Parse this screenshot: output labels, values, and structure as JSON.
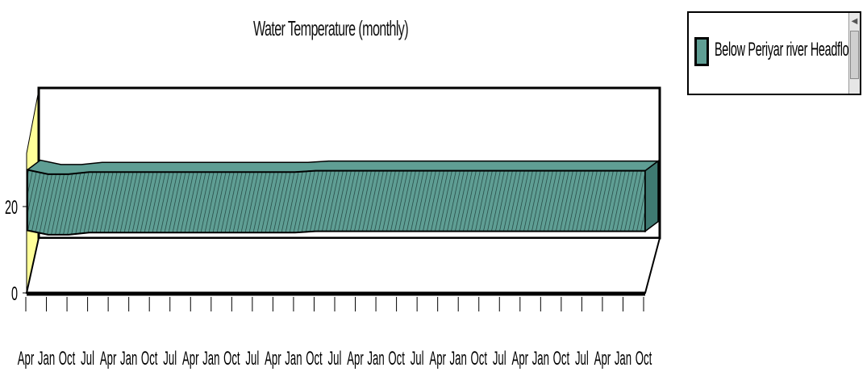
{
  "chart_data": {
    "type": "area",
    "title": "Water Temperature (monthly)",
    "xlabel": "",
    "ylabel": "",
    "ylim": [
      0,
      30
    ],
    "yticks": [
      0,
      20
    ],
    "grid": false,
    "legend_position": "top-right",
    "categories": [
      "Apr",
      "Jan",
      "Oct",
      "Jul",
      "Apr",
      "Jan",
      "Oct",
      "Jul",
      "Apr",
      "Jan",
      "Oct",
      "Jul",
      "Apr",
      "Jan",
      "Oct",
      "Jul",
      "Apr",
      "Jan",
      "Oct",
      "Jul",
      "Apr",
      "Jan",
      "Oct",
      "Jul",
      "Apr",
      "Jan",
      "Oct",
      "Jul",
      "Apr",
      "Jan",
      "Oct"
    ],
    "series": [
      {
        "name": "Below Periyar river Headflow",
        "color": "#5f9e94",
        "values": [
          28.5,
          27.5,
          27.5,
          28.0,
          28.0,
          28.0,
          28.0,
          28.0,
          28.0,
          28.0,
          28.0,
          28.0,
          28.0,
          28.0,
          28.3,
          28.3,
          28.3,
          28.3,
          28.3,
          28.3,
          28.3,
          28.3,
          28.3,
          28.3,
          28.3,
          28.3,
          28.3,
          28.3,
          28.3,
          28.3,
          28.3
        ]
      }
    ]
  }
}
